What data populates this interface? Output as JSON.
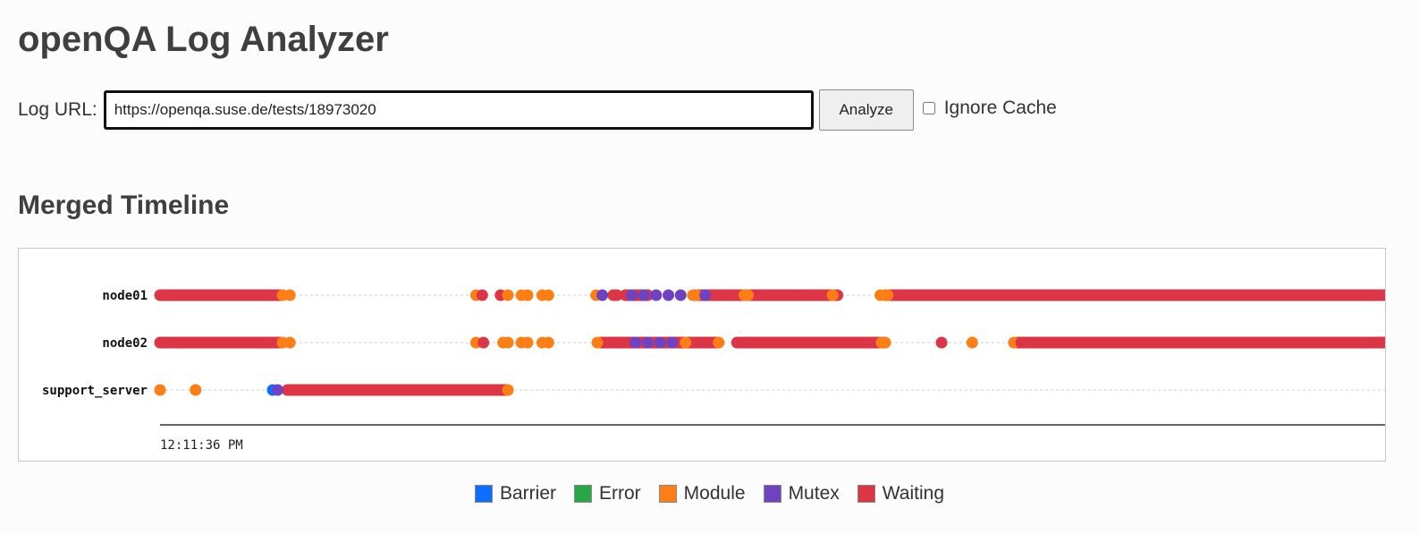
{
  "page": {
    "title": "openQA Log Analyzer"
  },
  "form": {
    "url_label": "Log URL:",
    "url_value": "https://openqa.suse.de/tests/18973020",
    "analyze_label": "Analyze",
    "ignore_cache_label": "Ignore Cache",
    "ignore_cache_checked": false
  },
  "section": {
    "title": "Merged Timeline"
  },
  "colors": {
    "Barrier": "#0d6efd",
    "Error": "#28a745",
    "Module": "#fd7e14",
    "Mutex": "#6f42c1",
    "Waiting": "#dc3545"
  },
  "legend": [
    {
      "label": "Barrier",
      "color": "#0d6efd"
    },
    {
      "label": "Error",
      "color": "#28a745"
    },
    {
      "label": "Module",
      "color": "#fd7e14"
    },
    {
      "label": "Mutex",
      "color": "#6f42c1"
    },
    {
      "label": "Waiting",
      "color": "#dc3545"
    }
  ],
  "chart_data": {
    "type": "scatter",
    "x_axis_tick": "12:11:36 PM",
    "x_range": [
      0,
      1000
    ],
    "rows": [
      "node01",
      "node02",
      "support_server"
    ],
    "series": [
      {
        "row": "node01",
        "segments": [
          {
            "type": "Waiting",
            "start": 0,
            "end": 98
          },
          {
            "type": "Waiting",
            "start": 380,
            "end": 398
          },
          {
            "type": "Waiting",
            "start": 385,
            "end": 398
          },
          {
            "type": "Waiting",
            "start": 381,
            "end": 392
          },
          {
            "type": "Waiting",
            "start": 380,
            "end": 382
          },
          {
            "type": "Waiting",
            "start": 386,
            "end": 397
          },
          {
            "type": "Waiting",
            "start": 391,
            "end": 397
          },
          {
            "type": "Waiting",
            "start": 467,
            "end": 553
          },
          {
            "type": "Waiting",
            "start": 457,
            "end": 551
          },
          {
            "type": "Waiting",
            "start": 447,
            "end": 551
          },
          {
            "type": "Waiting",
            "start": 436,
            "end": 545
          },
          {
            "type": "Waiting",
            "start": 370,
            "end": 373
          },
          {
            "type": "Waiting",
            "start": 381,
            "end": 392
          },
          {
            "type": "Waiting",
            "start": 592,
            "end": 1000
          }
        ],
        "points": [
          {
            "type": "Module",
            "t": 100
          },
          {
            "type": "Module",
            "t": 106
          },
          {
            "type": "Module",
            "t": 258
          },
          {
            "type": "Waiting",
            "t": 263
          },
          {
            "type": "Waiting",
            "t": 278
          },
          {
            "type": "Module",
            "t": 284
          },
          {
            "type": "Module",
            "t": 295
          },
          {
            "type": "Module",
            "t": 300
          },
          {
            "type": "Module",
            "t": 312
          },
          {
            "type": "Module",
            "t": 317
          },
          {
            "type": "Module",
            "t": 356
          },
          {
            "type": "Mutex",
            "t": 361
          },
          {
            "type": "Mutex",
            "t": 385
          },
          {
            "type": "Mutex",
            "t": 395
          },
          {
            "type": "Mutex",
            "t": 405
          },
          {
            "type": "Mutex",
            "t": 415
          },
          {
            "type": "Mutex",
            "t": 425
          },
          {
            "type": "Module",
            "t": 435
          },
          {
            "type": "Module",
            "t": 438
          },
          {
            "type": "Mutex",
            "t": 445
          },
          {
            "type": "Module",
            "t": 477
          },
          {
            "type": "Module",
            "t": 480
          },
          {
            "type": "Waiting",
            "t": 525
          },
          {
            "type": "Module",
            "t": 549
          },
          {
            "type": "Module",
            "t": 588
          },
          {
            "type": "Module",
            "t": 592
          },
          {
            "type": "Module",
            "t": 594
          }
        ]
      },
      {
        "row": "node02",
        "segments": [
          {
            "type": "Waiting",
            "start": 0,
            "end": 98
          },
          {
            "type": "Waiting",
            "start": 360,
            "end": 456
          },
          {
            "type": "Waiting",
            "start": 471,
            "end": 591
          },
          {
            "type": "Waiting",
            "start": 700,
            "end": 1000
          }
        ],
        "points": [
          {
            "type": "Module",
            "t": 100
          },
          {
            "type": "Module",
            "t": 106
          },
          {
            "type": "Module",
            "t": 258
          },
          {
            "type": "Waiting",
            "t": 264
          },
          {
            "type": "Module",
            "t": 280
          },
          {
            "type": "Module",
            "t": 284
          },
          {
            "type": "Module",
            "t": 295
          },
          {
            "type": "Module",
            "t": 300
          },
          {
            "type": "Module",
            "t": 312
          },
          {
            "type": "Module",
            "t": 317
          },
          {
            "type": "Module",
            "t": 357
          },
          {
            "type": "Mutex",
            "t": 388
          },
          {
            "type": "Mutex",
            "t": 398
          },
          {
            "type": "Mutex",
            "t": 408
          },
          {
            "type": "Mutex",
            "t": 418
          },
          {
            "type": "Module",
            "t": 429
          },
          {
            "type": "Module",
            "t": 456
          },
          {
            "type": "Module",
            "t": 589
          },
          {
            "type": "Module",
            "t": 592
          },
          {
            "type": "Waiting",
            "t": 638
          },
          {
            "type": "Module",
            "t": 663
          },
          {
            "type": "Module",
            "t": 697
          },
          {
            "type": "Waiting",
            "t": 703
          }
        ]
      },
      {
        "row": "support_server",
        "segments": [
          {
            "type": "Waiting",
            "start": 104,
            "end": 283
          }
        ],
        "points": [
          {
            "type": "Module",
            "t": 0
          },
          {
            "type": "Module",
            "t": 29
          },
          {
            "type": "Barrier",
            "t": 92
          },
          {
            "type": "Mutex",
            "t": 96
          },
          {
            "type": "Module",
            "t": 284
          }
        ]
      }
    ]
  }
}
